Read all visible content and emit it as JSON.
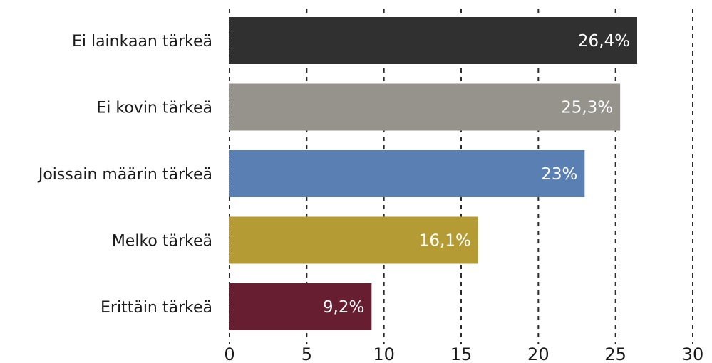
{
  "chart_data": {
    "type": "bar",
    "orientation": "horizontal",
    "categories": [
      "Ei lainkaan tärkeä",
      "Ei kovin tärkeä",
      "Joissain määrin tärkeä",
      "Melko tärkeä",
      "Erittäin tärkeä"
    ],
    "values": [
      26.4,
      25.3,
      23,
      16.1,
      9.2
    ],
    "value_labels": [
      "26,4%",
      "25,3%",
      "23%",
      "16,1%",
      "9,2%"
    ],
    "colors": [
      "#303030",
      "#96938d",
      "#5a7fb3",
      "#b59b34",
      "#661e30"
    ],
    "xlim": [
      0,
      30
    ],
    "x_ticks": [
      0,
      5,
      10,
      15,
      20,
      25,
      30
    ],
    "grid": "vertical dashed",
    "legend": "none"
  }
}
